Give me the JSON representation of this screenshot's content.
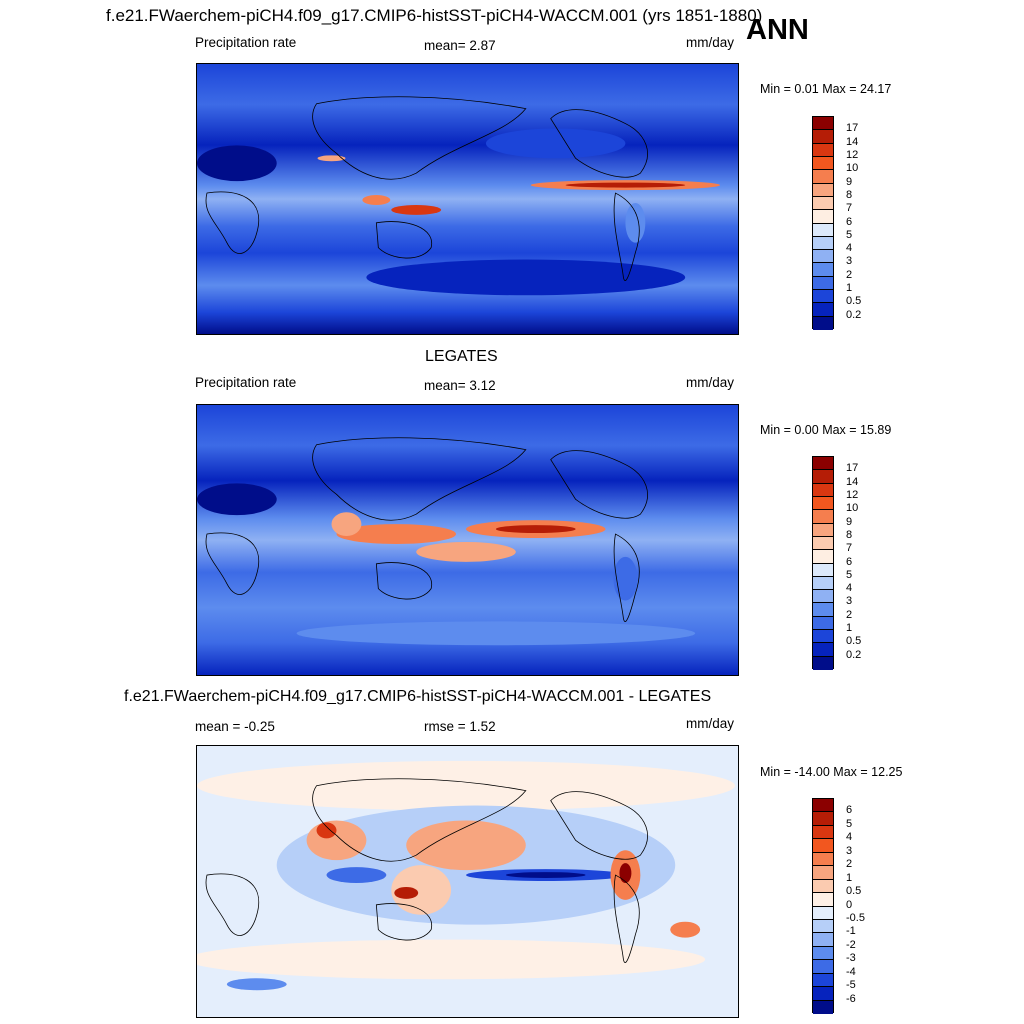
{
  "header": {
    "title": "f.e21.FWaerchem-piCH4.f09_g17.CMIP6-histSST-piCH4-WACCM.001 (yrs 1851-1880)",
    "season": "ANN"
  },
  "panels": [
    {
      "id": "model",
      "left_label": "Precipitation rate",
      "center_label": "mean=   2.87",
      "units": "mm/day",
      "minmax": "Min =   0.01 Max =  24.17",
      "colorbar": {
        "labels": [
          "17",
          "14",
          "12",
          "10",
          "9",
          "8",
          "7",
          "6",
          "5",
          "4",
          "3",
          "2",
          "1",
          "0.5",
          "0.2"
        ],
        "colors": [
          "#8b0000",
          "#b51d06",
          "#d93711",
          "#f2571f",
          "#f57e4e",
          "#f7a57f",
          "#fbcbb0",
          "#feeee2",
          "#dce9fb",
          "#b6cff8",
          "#8fb1f3",
          "#5d8cee",
          "#3d6be6",
          "#1c45d9",
          "#0623bd",
          "#000d8a"
        ]
      }
    },
    {
      "id": "obs",
      "title": "LEGATES",
      "left_label": "Precipitation rate",
      "center_label": "mean=   3.12",
      "units": "mm/day",
      "minmax": "Min =   0.00 Max =  15.89",
      "colorbar": {
        "labels": [
          "17",
          "14",
          "12",
          "10",
          "9",
          "8",
          "7",
          "6",
          "5",
          "4",
          "3",
          "2",
          "1",
          "0.5",
          "0.2"
        ],
        "colors": [
          "#8b0000",
          "#b51d06",
          "#d93711",
          "#f2571f",
          "#f57e4e",
          "#f7a57f",
          "#fbcbb0",
          "#feeee2",
          "#dce9fb",
          "#b6cff8",
          "#8fb1f3",
          "#5d8cee",
          "#3d6be6",
          "#1c45d9",
          "#0623bd",
          "#000d8a"
        ]
      }
    },
    {
      "id": "diff",
      "title": "f.e21.FWaerchem-piCH4.f09_g17.CMIP6-histSST-piCH4-WACCM.001 - LEGATES",
      "left_label": "mean =  -0.25",
      "center_label": "rmse =   1.52",
      "units": "mm/day",
      "minmax": "Min = -14.00 Max =  12.25",
      "colorbar": {
        "labels": [
          "6",
          "5",
          "4",
          "3",
          "2",
          "1",
          "0.5",
          "0",
          "-0.5",
          "-1",
          "-2",
          "-3",
          "-4",
          "-5",
          "-6"
        ],
        "colors": [
          "#8b0000",
          "#b51d06",
          "#d93711",
          "#f2571f",
          "#f57e4e",
          "#f7a57f",
          "#fbcbb0",
          "#fef0e6",
          "#e4eefc",
          "#b6cff8",
          "#8fb1f3",
          "#5d8cee",
          "#3d6be6",
          "#1c45d9",
          "#0623bd",
          "#000d8a"
        ]
      }
    }
  ]
}
